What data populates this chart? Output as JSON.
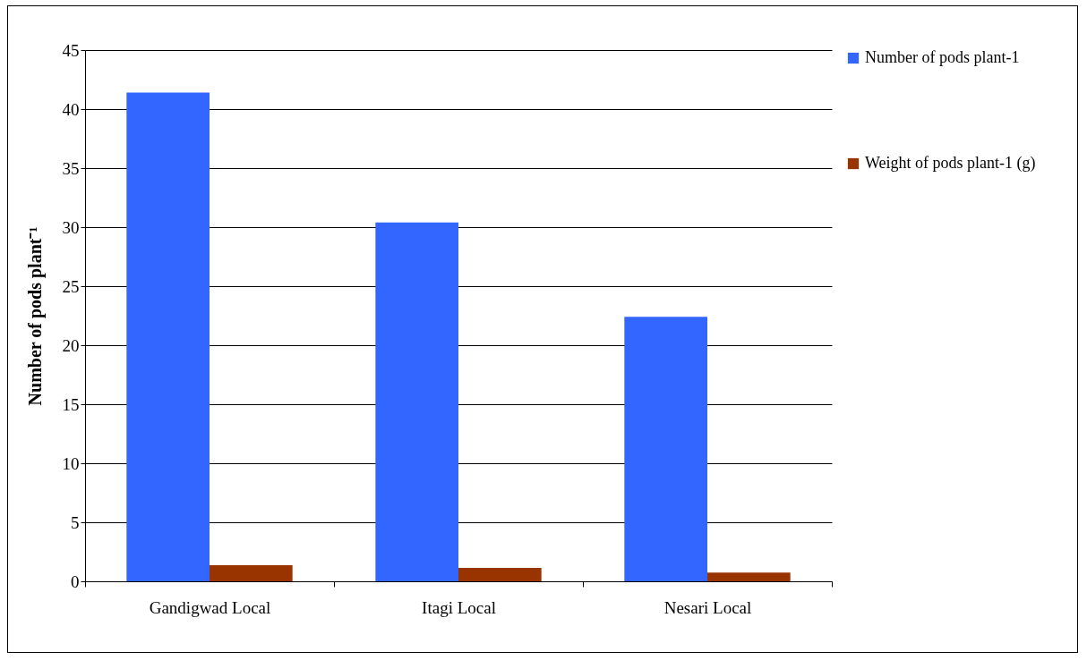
{
  "chart_data": {
    "type": "bar",
    "ylabel": "Number of pods plant⁻¹",
    "categories": [
      "Gandigwad Local",
      "Itagi Local",
      "Nesari Local"
    ],
    "series": [
      {
        "name": "Number of pods plant-1",
        "color": "#3366ff",
        "values": [
          41.4,
          30.4,
          22.4
        ]
      },
      {
        "name": "Weight of pods plant-1 (g)",
        "color": "#993300",
        "values": [
          1.37,
          1.13,
          0.74
        ]
      }
    ],
    "ylim": [
      0,
      45
    ],
    "yticks": [
      0,
      5,
      10,
      15,
      20,
      25,
      30,
      35,
      40,
      45
    ],
    "grid": "y",
    "legend": "right"
  }
}
